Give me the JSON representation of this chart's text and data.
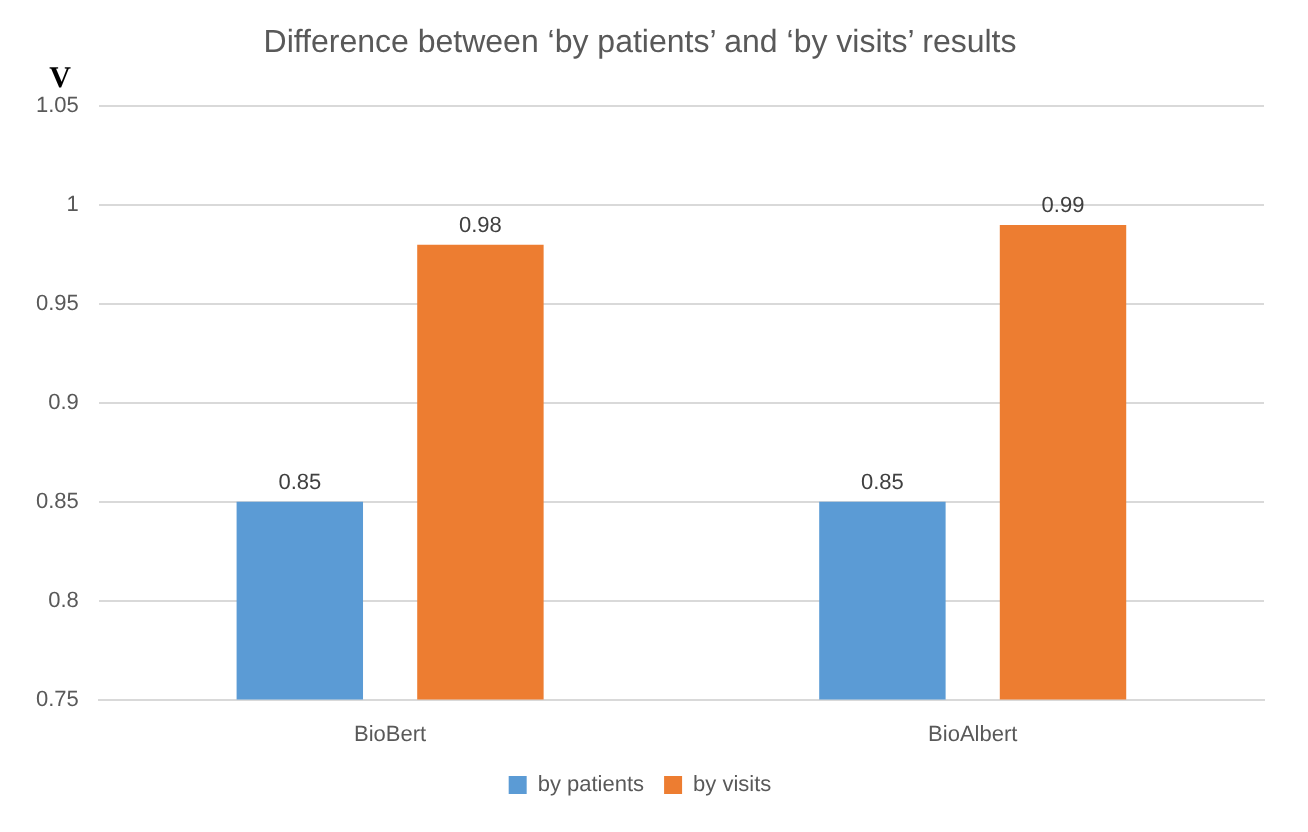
{
  "chart_data": {
    "type": "bar",
    "title": "Difference between ‘by patients’ and ‘by visits’ results",
    "ylabel": "V",
    "categories": [
      "BioBert",
      "BioAlbert"
    ],
    "series": [
      {
        "name": "by patients",
        "color": "#5b9bd5",
        "values": [
          0.85,
          0.85
        ]
      },
      {
        "name": "by visits",
        "color": "#ed7d31",
        "values": [
          0.98,
          0.99
        ]
      }
    ],
    "ylim": [
      0.75,
      1.05
    ],
    "yticks": [
      0.75,
      0.8,
      0.85,
      0.9,
      0.95,
      1,
      1.05
    ],
    "grid": "y",
    "legend": "bottom",
    "data_labels": true
  }
}
